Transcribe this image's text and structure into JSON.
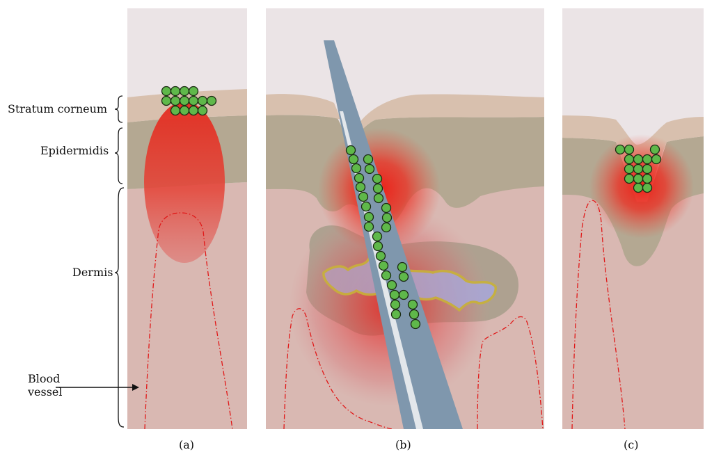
{
  "layers": {
    "stratum_corneum": "Stratum corneum",
    "epidermis": "Epidermidis",
    "dermis": "Dermis",
    "blood_vessel_line1": "Blood",
    "blood_vessel_line2": "vessel"
  },
  "panels": {
    "a": "(a)",
    "b": "(b)",
    "c": "(c)"
  },
  "colors": {
    "sky": "#ebe4e6",
    "stratum_corneum": "#d8c0ae",
    "epidermis": "#b4a892",
    "dermis": "#d9b8b2",
    "particle": "#5fb84a",
    "vessel": "#e01818",
    "needle": "#7f97ad",
    "inflammation": "#e8201c"
  }
}
